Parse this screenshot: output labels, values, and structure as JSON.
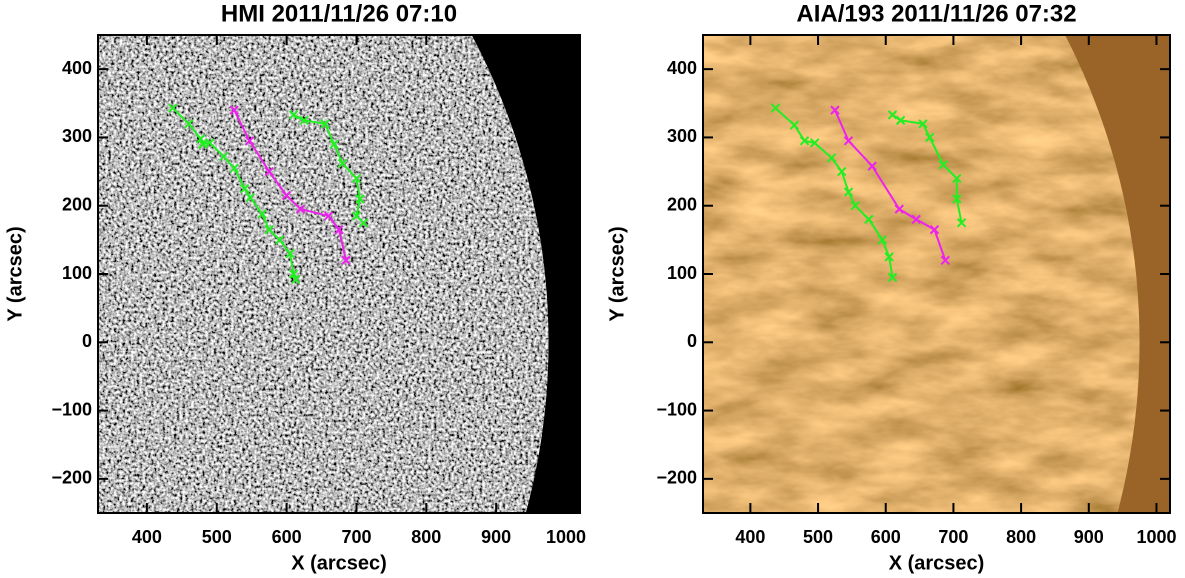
{
  "chart_data": [
    {
      "type": "line",
      "title": "HMI 2011/11/26 07:10",
      "xlabel": "X (arcsec)",
      "ylabel": "Y (arcsec)",
      "xlim": [
        330,
        1020
      ],
      "ylim": [
        -250,
        450
      ],
      "xticks": [
        400,
        500,
        600,
        700,
        800,
        900,
        1000
      ],
      "yticks": [
        {
          "value": -200,
          "label": "−200"
        },
        {
          "value": -100,
          "label": "−100"
        },
        0,
        100,
        200,
        300,
        400
      ],
      "marker": "x",
      "series": [
        {
          "color": "#22ee22",
          "x": [
            437,
            460,
            477,
            480,
            490,
            510,
            525,
            540,
            548,
            565,
            575,
            590,
            605,
            610,
            613
          ],
          "values": [
            343,
            320,
            298,
            290,
            292,
            272,
            255,
            225,
            212,
            188,
            165,
            150,
            130,
            100,
            92
          ]
        },
        {
          "color": "#ee22ee",
          "x": [
            525,
            547,
            575,
            600,
            620,
            660,
            675,
            685
          ],
          "values": [
            340,
            295,
            250,
            215,
            195,
            185,
            165,
            120
          ]
        },
        {
          "color": "#22ee22",
          "x": [
            610,
            625,
            655,
            668,
            680,
            700,
            705,
            700,
            710
          ],
          "values": [
            333,
            325,
            320,
            290,
            262,
            240,
            210,
            185,
            175
          ]
        }
      ]
    },
    {
      "type": "line",
      "title": "AIA/193 2011/11/26 07:32",
      "xlabel": "X (arcsec)",
      "ylabel": "Y (arcsec)",
      "xlim": [
        330,
        1020
      ],
      "ylim": [
        -250,
        450
      ],
      "xticks": [
        400,
        500,
        600,
        700,
        800,
        900,
        1000
      ],
      "yticks": [
        {
          "value": -200,
          "label": "−200"
        },
        {
          "value": -100,
          "label": "−100"
        },
        0,
        100,
        200,
        300,
        400
      ],
      "marker": "x",
      "series": [
        {
          "color": "#22ee22",
          "x": [
            437,
            465,
            480,
            495,
            520,
            535,
            545,
            555,
            575,
            595,
            605,
            610
          ],
          "values": [
            343,
            318,
            295,
            292,
            270,
            250,
            220,
            200,
            180,
            150,
            125,
            95
          ]
        },
        {
          "color": "#ee22ee",
          "x": [
            525,
            545,
            580,
            620,
            645,
            672,
            688
          ],
          "values": [
            340,
            295,
            258,
            195,
            180,
            165,
            120
          ]
        },
        {
          "color": "#22ee22",
          "x": [
            610,
            622,
            655,
            665,
            685,
            705,
            705,
            712
          ],
          "values": [
            333,
            325,
            320,
            300,
            260,
            240,
            210,
            175
          ]
        }
      ]
    }
  ]
}
